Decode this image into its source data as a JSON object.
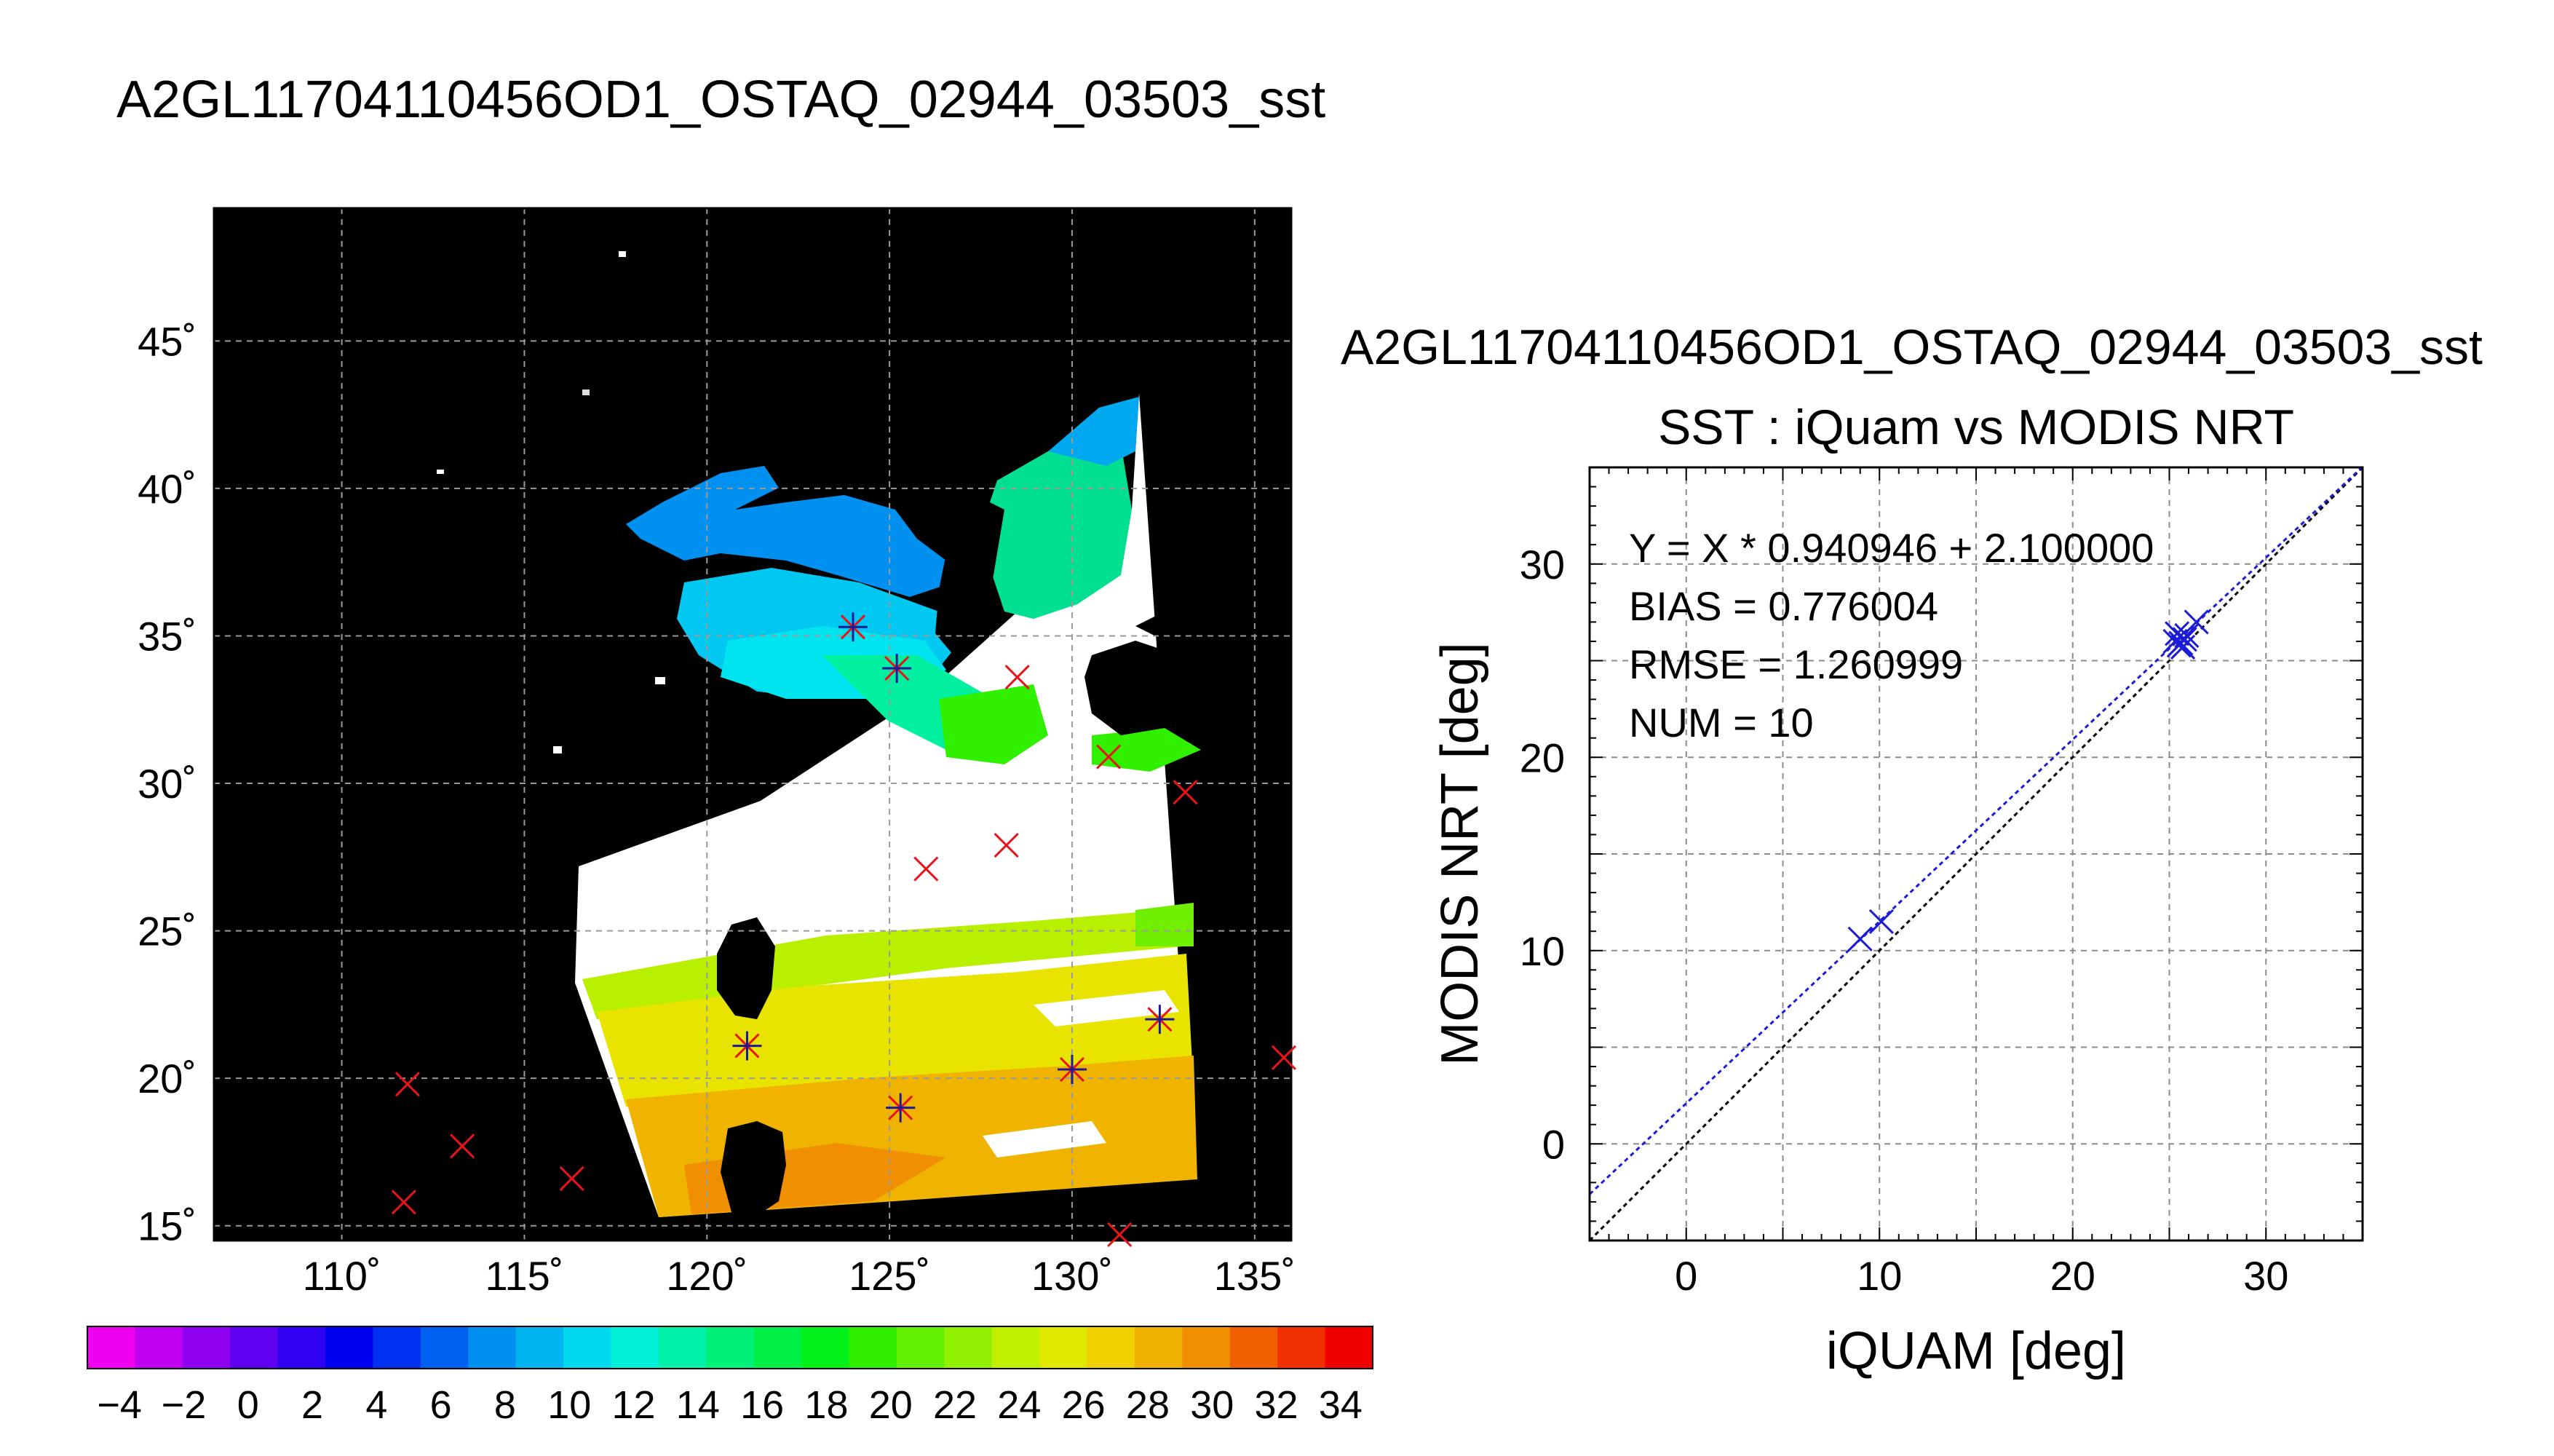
{
  "page_title": "A2GL11704110456OD1_OSTAQ_02944_03503_sst",
  "colors": {
    "map_background": "#000000",
    "land_or_cloud": "#ffffff",
    "marker_red": "#e8141a",
    "marker_navy": "#1b1b9a",
    "scatter_blue": "#1c1cd6",
    "fit_line": "#1c1cd6",
    "one_to_one_line": "#000000"
  },
  "chart_data": [
    {
      "type": "heatmap",
      "name": "sst-map",
      "title": "",
      "xlabel": "",
      "ylabel": "",
      "x_ticks": [
        "110˚",
        "115˚",
        "120˚",
        "125˚",
        "130˚",
        "135˚"
      ],
      "x_tick_values": [
        110,
        115,
        120,
        125,
        130,
        135
      ],
      "y_ticks": [
        "15˚",
        "20˚",
        "25˚",
        "30˚",
        "35˚",
        "40˚",
        "45˚"
      ],
      "y_tick_values": [
        15,
        20,
        25,
        30,
        35,
        40,
        45
      ],
      "xlim": [
        106.5,
        136
      ],
      "ylim": [
        14.5,
        49.5
      ],
      "grid": true,
      "colorbar": {
        "ticks": [
          "−4",
          "−2",
          "0",
          "2",
          "4",
          "6",
          "8",
          "10",
          "12",
          "14",
          "16",
          "18",
          "20",
          "22",
          "24",
          "26",
          "28",
          "30",
          "32",
          "34"
        ],
        "tick_values": [
          -4,
          -2,
          0,
          2,
          4,
          6,
          8,
          10,
          12,
          14,
          16,
          18,
          20,
          22,
          24,
          26,
          28,
          30,
          32,
          34
        ],
        "range": [
          -5,
          35
        ],
        "colors": [
          "#ee00ee",
          "#c000f0",
          "#9000f0",
          "#6000f0",
          "#3000f0",
          "#0000f0",
          "#0030f0",
          "#0060f0",
          "#0090f0",
          "#00b4f0",
          "#00d8f0",
          "#00f0d8",
          "#00f0a8",
          "#00f078",
          "#00f048",
          "#00f018",
          "#30f000",
          "#60f000",
          "#90f000",
          "#c0f000",
          "#e0e800",
          "#f0d000",
          "#f0b000",
          "#f09000",
          "#f06000",
          "#f03000",
          "#f00000"
        ]
      },
      "markers_x": [
        {
          "lon": 111.8,
          "lat": 19.8
        },
        {
          "lon": 113.3,
          "lat": 17.7
        },
        {
          "lon": 111.7,
          "lat": 15.8
        },
        {
          "lon": 116.3,
          "lat": 16.6
        },
        {
          "lon": 128.5,
          "lat": 33.6
        },
        {
          "lon": 126.0,
          "lat": 27.1
        },
        {
          "lon": 128.2,
          "lat": 27.9
        },
        {
          "lon": 133.1,
          "lat": 29.7
        },
        {
          "lon": 131.0,
          "lat": 30.9
        },
        {
          "lon": 135.8,
          "lat": 20.7
        },
        {
          "lon": 131.3,
          "lat": 14.7
        }
      ],
      "markers_star": [
        {
          "lon": 124.0,
          "lat": 35.3
        },
        {
          "lon": 125.2,
          "lat": 33.9
        },
        {
          "lon": 121.1,
          "lat": 21.1
        },
        {
          "lon": 125.3,
          "lat": 19.0
        },
        {
          "lon": 130.0,
          "lat": 20.3
        },
        {
          "lon": 132.4,
          "lat": 22.0
        }
      ]
    },
    {
      "type": "scatter",
      "name": "sst-scatter",
      "supertitle": "A2GL11704110456OD1_OSTAQ_02944_03503_sst",
      "title": "SST : iQuam vs MODIS NRT",
      "xlabel": "iQUAM [deg]",
      "ylabel": "MODIS NRT [deg]",
      "xlim": [
        -5,
        35
      ],
      "ylim": [
        -5,
        35
      ],
      "x_ticks": [
        "0",
        "10",
        "20",
        "30"
      ],
      "x_tick_values": [
        0,
        10,
        20,
        30
      ],
      "y_ticks": [
        "0",
        "10",
        "20",
        "30"
      ],
      "y_tick_values": [
        0,
        10,
        20,
        30
      ],
      "grid": true,
      "annotations": [
        "Y = X * 0.940946 + 2.100000",
        "BIAS = 0.776004",
        "RMSE = 1.260999",
        "NUM = 10"
      ],
      "fit": {
        "slope": 0.940946,
        "intercept": 2.1
      },
      "points": [
        {
          "x": 9.0,
          "y": 10.6
        },
        {
          "x": 10.1,
          "y": 11.5
        },
        {
          "x": 25.4,
          "y": 26.4
        },
        {
          "x": 25.6,
          "y": 25.9
        },
        {
          "x": 25.8,
          "y": 26.1
        },
        {
          "x": 25.5,
          "y": 25.8
        },
        {
          "x": 25.9,
          "y": 26.3
        },
        {
          "x": 25.3,
          "y": 26.0
        },
        {
          "x": 26.4,
          "y": 27.0
        },
        {
          "x": 25.7,
          "y": 25.7
        }
      ]
    }
  ]
}
